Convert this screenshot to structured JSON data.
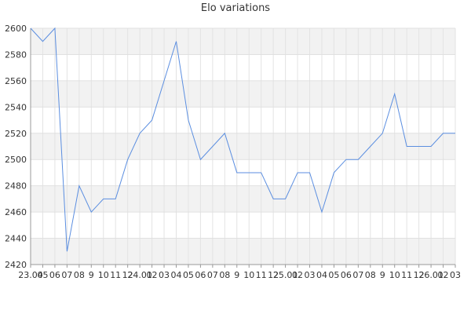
{
  "chart_data": {
    "type": "line",
    "title": "Elo variations",
    "xlabel": "",
    "ylabel": "",
    "ylim": [
      2420,
      2600
    ],
    "yticks": [
      2420,
      2440,
      2460,
      2480,
      2500,
      2520,
      2540,
      2560,
      2580,
      2600
    ],
    "x_tick_labels": [
      "23.04",
      "05",
      "06",
      "07",
      "08",
      "9",
      "10",
      "11",
      "12",
      "24.01",
      "02",
      "03",
      "04",
      "05",
      "06",
      "07",
      "08",
      "9",
      "10",
      "11",
      "12",
      "25.01",
      "02",
      "03",
      "04",
      "05",
      "06",
      "07",
      "08",
      "9",
      "10",
      "11",
      "12",
      "26.01",
      "02",
      "03"
    ],
    "grid": true,
    "alternating_bands": true,
    "series": [
      {
        "color": "#5b8ee0",
        "values": [
          2600,
          2590,
          2600,
          2430,
          2480,
          2460,
          2470,
          2470,
          2500,
          2520,
          2530,
          2560,
          2590,
          2530,
          2500,
          2510,
          2520,
          2490,
          2490,
          2490,
          2470,
          2470,
          2490,
          2490,
          2460,
          2490,
          2500,
          2500,
          2510,
          2520,
          2550,
          2510,
          2510,
          2510,
          2520,
          2520
        ]
      }
    ]
  }
}
